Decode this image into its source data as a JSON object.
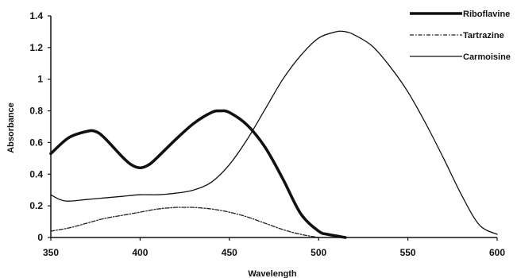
{
  "chart_data": {
    "type": "line",
    "xlabel": "Wavelength",
    "ylabel": "Absorbance",
    "xlim": [
      350,
      600
    ],
    "ylim": [
      0,
      1.4
    ],
    "xticks": [
      "350",
      "400",
      "450",
      "500",
      "550",
      "600"
    ],
    "yticks": [
      "0",
      "0.2",
      "0.4",
      "0.6",
      "0.8",
      "1",
      "1.2",
      "1.4"
    ],
    "grid": false,
    "legend_position": "top-right",
    "series": [
      {
        "name": "Riboflavine",
        "style": "thick",
        "color": "#111111",
        "x": [
          350,
          360,
          370,
          375,
          380,
          390,
          395,
          400,
          405,
          410,
          420,
          430,
          440,
          445,
          450,
          460,
          470,
          480,
          490,
          500,
          505,
          510,
          515
        ],
        "y": [
          0.53,
          0.63,
          0.67,
          0.67,
          0.63,
          0.51,
          0.46,
          0.44,
          0.46,
          0.51,
          0.62,
          0.72,
          0.79,
          0.8,
          0.79,
          0.71,
          0.57,
          0.37,
          0.15,
          0.04,
          0.02,
          0.01,
          0.0
        ]
      },
      {
        "name": "Tartrazine",
        "style": "dashdot",
        "color": "#222222",
        "x": [
          350,
          360,
          370,
          380,
          390,
          400,
          410,
          420,
          425,
          430,
          440,
          450,
          460,
          470,
          480,
          490,
          500
        ],
        "y": [
          0.04,
          0.06,
          0.09,
          0.12,
          0.14,
          0.16,
          0.18,
          0.19,
          0.19,
          0.19,
          0.18,
          0.16,
          0.13,
          0.09,
          0.05,
          0.02,
          0.0
        ]
      },
      {
        "name": "Carmoisine",
        "style": "thin",
        "color": "#111111",
        "x": [
          350,
          355,
          360,
          370,
          380,
          390,
          400,
          410,
          420,
          430,
          440,
          450,
          460,
          470,
          480,
          490,
          500,
          510,
          515,
          520,
          530,
          540,
          550,
          560,
          570,
          580,
          590,
          600
        ],
        "y": [
          0.27,
          0.24,
          0.23,
          0.24,
          0.25,
          0.26,
          0.27,
          0.27,
          0.28,
          0.3,
          0.35,
          0.46,
          0.62,
          0.81,
          1.0,
          1.15,
          1.26,
          1.3,
          1.3,
          1.28,
          1.21,
          1.08,
          0.92,
          0.72,
          0.5,
          0.27,
          0.08,
          0.02
        ]
      }
    ]
  }
}
